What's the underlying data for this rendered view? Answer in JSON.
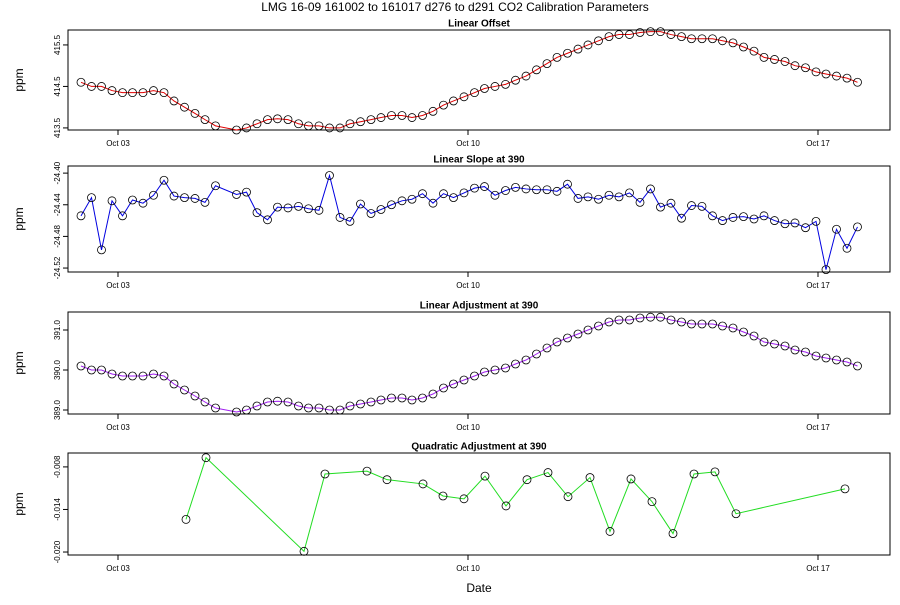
{
  "title": "LMG   16-09    161002 to 161017    d276 to d291   CO2 Calibration Parameters",
  "chart_data": [
    {
      "type": "line",
      "title": "Linear Offset",
      "ylabel": "ppm",
      "color": "#e00000",
      "marker_color": "#000000",
      "x": [
        2.26,
        2.47,
        2.67,
        2.88,
        3.09,
        3.29,
        3.5,
        3.71,
        3.92,
        4.12,
        4.33,
        4.54,
        4.74,
        4.95,
        5.37,
        5.57,
        5.78,
        5.99,
        6.19,
        6.4,
        6.61,
        6.81,
        7.02,
        7.23,
        7.44,
        7.64,
        7.85,
        8.06,
        8.26,
        8.47,
        8.68,
        8.88,
        9.09,
        9.3,
        9.51,
        9.71,
        9.92,
        10.13,
        10.33,
        10.54,
        10.75,
        10.95,
        11.16,
        11.37,
        11.58,
        11.78,
        11.99,
        12.2,
        12.4,
        12.61,
        12.82,
        13.02,
        13.23,
        13.44,
        13.65,
        13.85,
        14.06,
        14.27,
        14.47,
        14.68,
        14.89,
        15.09,
        15.3,
        15.51,
        15.72,
        15.92,
        16.13,
        16.34,
        16.54,
        16.75,
        16.96,
        17.16,
        17.37,
        17.58,
        17.79
      ],
      "values": [
        414.6,
        414.5,
        414.5,
        414.4,
        414.35,
        414.35,
        414.35,
        414.4,
        414.35,
        414.15,
        414.0,
        413.85,
        413.7,
        413.55,
        413.45,
        413.5,
        413.6,
        413.7,
        413.72,
        413.7,
        413.6,
        413.55,
        413.55,
        413.5,
        413.5,
        413.6,
        413.65,
        413.7,
        413.75,
        413.8,
        413.8,
        413.75,
        413.8,
        413.9,
        414.05,
        414.15,
        414.25,
        414.35,
        414.45,
        414.5,
        414.55,
        414.65,
        414.75,
        414.9,
        415.05,
        415.2,
        415.3,
        415.4,
        415.5,
        415.6,
        415.7,
        415.75,
        415.75,
        415.8,
        415.82,
        415.82,
        415.75,
        415.7,
        415.65,
        415.65,
        415.65,
        415.6,
        415.55,
        415.45,
        415.35,
        415.2,
        415.15,
        415.1,
        415.0,
        414.95,
        414.85,
        414.8,
        414.75,
        414.7,
        414.6
      ],
      "xlim": [
        2.0,
        18.44
      ],
      "ylim": [
        413.45,
        415.86
      ],
      "xticks": [
        {
          "value": 3,
          "label": "Oct 03"
        },
        {
          "value": 10,
          "label": "Oct 10"
        },
        {
          "value": 17,
          "label": "Oct 17"
        }
      ],
      "yticks": [
        413.5,
        414.5,
        415.5
      ]
    },
    {
      "type": "line",
      "title": "Linear Slope at 390",
      "ylabel": "ppm",
      "color": "#0000e0",
      "marker_color": "#000000",
      "x": [
        2.26,
        2.47,
        2.67,
        2.88,
        3.09,
        3.29,
        3.5,
        3.71,
        3.92,
        4.12,
        4.33,
        4.54,
        4.74,
        4.95,
        5.37,
        5.57,
        5.78,
        5.99,
        6.19,
        6.4,
        6.61,
        6.81,
        7.02,
        7.23,
        7.44,
        7.64,
        7.85,
        8.06,
        8.26,
        8.47,
        8.68,
        8.88,
        9.09,
        9.3,
        9.51,
        9.71,
        9.92,
        10.13,
        10.33,
        10.54,
        10.75,
        10.95,
        11.16,
        11.37,
        11.58,
        11.78,
        11.99,
        12.2,
        12.4,
        12.61,
        12.82,
        13.02,
        13.23,
        13.44,
        13.65,
        13.85,
        14.06,
        14.27,
        14.47,
        14.68,
        14.89,
        15.09,
        15.3,
        15.51,
        15.72,
        15.92,
        16.13,
        16.34,
        16.54,
        16.75,
        16.96,
        17.16,
        17.37,
        17.58,
        17.79
      ],
      "values": [
        -24.454,
        -24.431,
        -24.497,
        -24.435,
        -24.454,
        -24.434,
        -24.438,
        -24.428,
        -24.409,
        -24.429,
        -24.431,
        -24.432,
        -24.437,
        -24.416,
        -24.427,
        -24.424,
        -24.45,
        -24.459,
        -24.443,
        -24.444,
        -24.442,
        -24.445,
        -24.447,
        -24.403,
        -24.456,
        -24.461,
        -24.439,
        -24.451,
        -24.446,
        -24.44,
        -24.435,
        -24.433,
        -24.426,
        -24.438,
        -24.426,
        -24.431,
        -24.425,
        -24.419,
        -24.417,
        -24.428,
        -24.422,
        -24.418,
        -24.42,
        -24.421,
        -24.421,
        -24.423,
        -24.414,
        -24.432,
        -24.43,
        -24.433,
        -24.428,
        -24.43,
        -24.425,
        -24.437,
        -24.42,
        -24.443,
        -24.438,
        -24.457,
        -24.441,
        -24.442,
        -24.454,
        -24.46,
        -24.456,
        -24.455,
        -24.458,
        -24.454,
        -24.46,
        -24.464,
        -24.463,
        -24.469,
        -24.461,
        -24.522,
        -24.471,
        -24.495,
        -24.468
      ],
      "xlim": [
        2.0,
        18.44
      ],
      "ylim": [
        -24.525,
        -24.391
      ],
      "xticks": [
        {
          "value": 3,
          "label": "Oct 03"
        },
        {
          "value": 10,
          "label": "Oct 10"
        },
        {
          "value": 17,
          "label": "Oct 17"
        }
      ],
      "yticks": [
        {
          "value": -24.4,
          "label": "-24.40"
        },
        -24.44,
        -24.48,
        -24.52
      ]
    },
    {
      "type": "line",
      "title": "Linear Adjustment at 390",
      "ylabel": "ppm",
      "color": "#a020f0",
      "marker_color": "#000000",
      "x": [
        2.26,
        2.47,
        2.67,
        2.88,
        3.09,
        3.29,
        3.5,
        3.71,
        3.92,
        4.12,
        4.33,
        4.54,
        4.74,
        4.95,
        5.37,
        5.57,
        5.78,
        5.99,
        6.19,
        6.4,
        6.61,
        6.81,
        7.02,
        7.23,
        7.44,
        7.64,
        7.85,
        8.06,
        8.26,
        8.47,
        8.68,
        8.88,
        9.09,
        9.3,
        9.51,
        9.71,
        9.92,
        10.13,
        10.33,
        10.54,
        10.75,
        10.95,
        11.16,
        11.37,
        11.58,
        11.78,
        11.99,
        12.2,
        12.4,
        12.61,
        12.82,
        13.02,
        13.23,
        13.44,
        13.65,
        13.85,
        14.06,
        14.27,
        14.47,
        14.68,
        14.89,
        15.09,
        15.3,
        15.51,
        15.72,
        15.92,
        16.13,
        16.34,
        16.54,
        16.75,
        16.96,
        17.16,
        17.37,
        17.58,
        17.79
      ],
      "values": [
        390.1,
        390.0,
        390.0,
        389.9,
        389.85,
        389.85,
        389.85,
        389.9,
        389.85,
        389.65,
        389.5,
        389.35,
        389.2,
        389.05,
        388.95,
        389.0,
        389.1,
        389.2,
        389.22,
        389.2,
        389.1,
        389.05,
        389.05,
        389.0,
        389.0,
        389.1,
        389.15,
        389.2,
        389.25,
        389.3,
        389.3,
        389.25,
        389.3,
        389.4,
        389.55,
        389.65,
        389.75,
        389.85,
        389.95,
        390.0,
        390.05,
        390.15,
        390.25,
        390.4,
        390.55,
        390.7,
        390.8,
        390.9,
        391.0,
        391.1,
        391.2,
        391.25,
        391.25,
        391.3,
        391.32,
        391.32,
        391.25,
        391.2,
        391.15,
        391.15,
        391.15,
        391.1,
        391.05,
        390.95,
        390.85,
        390.7,
        390.65,
        390.6,
        390.5,
        390.45,
        390.35,
        390.3,
        390.25,
        390.2,
        390.1
      ],
      "xlim": [
        2.0,
        18.44
      ],
      "ylim": [
        388.9,
        391.45
      ],
      "xticks": [
        {
          "value": 3,
          "label": "Oct 03"
        },
        {
          "value": 10,
          "label": "Oct 10"
        },
        {
          "value": 17,
          "label": "Oct 17"
        }
      ],
      "yticks": [
        {
          "value": 389,
          "label": "389.0"
        },
        {
          "value": 390,
          "label": "390.0"
        },
        {
          "value": 391,
          "label": "391.0"
        }
      ]
    },
    {
      "type": "line",
      "title": "Quadratic Adjustment at 390",
      "ylabel": "ppm",
      "xlabel": "Date",
      "color": "#22dd22",
      "marker_color": "#000000",
      "x": [
        4.36,
        4.76,
        6.72,
        7.14,
        7.98,
        8.38,
        9.1,
        9.5,
        9.92,
        10.34,
        10.76,
        11.18,
        11.6,
        12.0,
        12.44,
        12.84,
        13.26,
        13.68,
        14.1,
        14.52,
        14.94,
        15.36,
        17.54
      ],
      "values": [
        -0.0154,
        -0.0067,
        -0.0199,
        -0.009,
        -0.0086,
        -0.0098,
        -0.0104,
        -0.0121,
        -0.0125,
        -0.0093,
        -0.0135,
        -0.0098,
        -0.0088,
        -0.0122,
        -0.0095,
        -0.0171,
        -0.0097,
        -0.0129,
        -0.0174,
        -0.009,
        -0.0087,
        -0.0146,
        -0.0111
      ],
      "xlim": [
        2.0,
        18.44
      ],
      "ylim": [
        -0.02042,
        -0.00604
      ],
      "xticks": [
        {
          "value": 3,
          "label": "Oct 03"
        },
        {
          "value": 10,
          "label": "Oct 10"
        },
        {
          "value": 17,
          "label": "Oct 17"
        }
      ],
      "yticks": [
        -0.008,
        -0.014,
        {
          "value": -0.02,
          "label": "-0.020"
        }
      ]
    }
  ]
}
